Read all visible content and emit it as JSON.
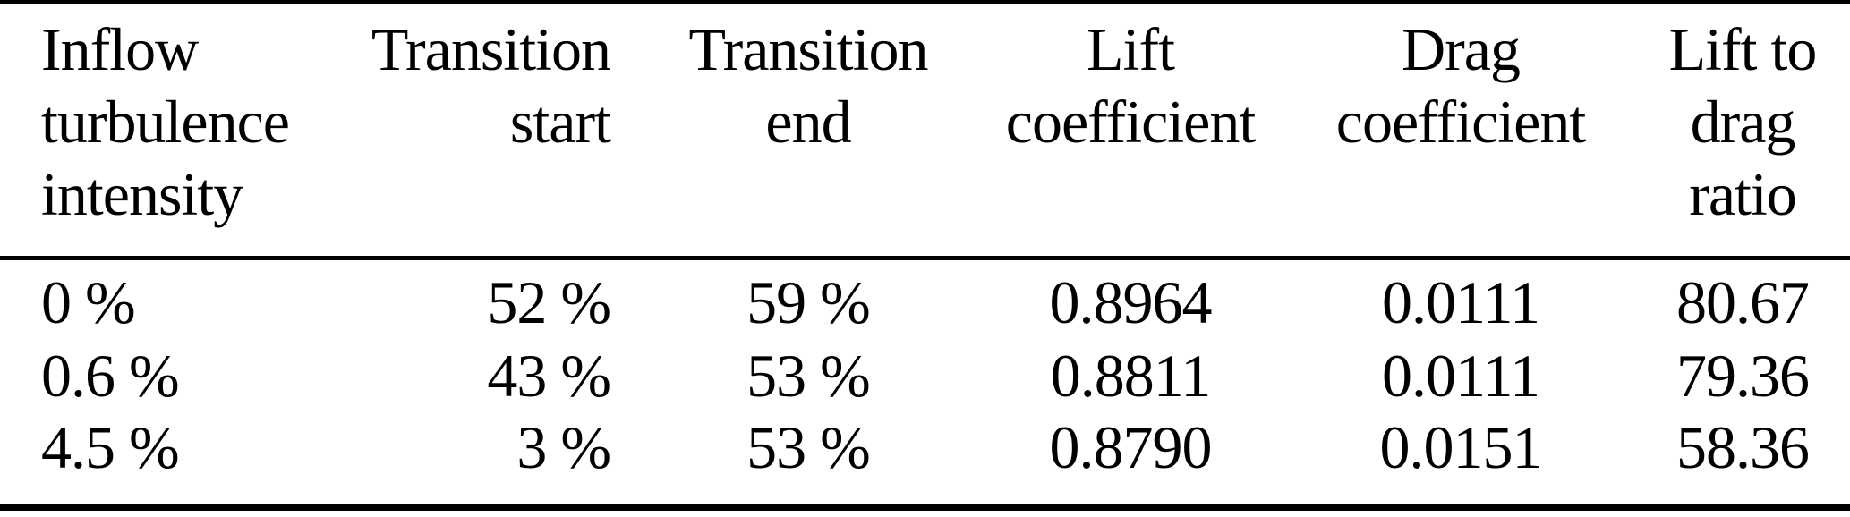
{
  "table": {
    "headers": [
      {
        "id": "inflow-turbulence-intensity",
        "lines": [
          "Inflow",
          "turbulence",
          "intensity"
        ]
      },
      {
        "id": "transition-start",
        "lines": [
          "Transition",
          "start"
        ]
      },
      {
        "id": "transition-end",
        "lines": [
          "Transition",
          "end"
        ]
      },
      {
        "id": "lift-coefficient",
        "lines": [
          "Lift",
          "coefficient"
        ]
      },
      {
        "id": "drag-coefficient",
        "lines": [
          "Drag",
          "coefficient"
        ]
      },
      {
        "id": "lift-to-drag-ratio",
        "lines": [
          "Lift to",
          "drag",
          "ratio"
        ]
      }
    ],
    "rows": [
      [
        "0 %",
        "52 %",
        "59 %",
        "0.8964",
        "0.0111",
        "80.67"
      ],
      [
        "0.6 %",
        "43 %",
        "53 %",
        "0.8811",
        "0.0111",
        "79.36"
      ],
      [
        "4.5 %",
        "3 %",
        "53 %",
        "0.8790",
        "0.0151",
        "58.36"
      ]
    ],
    "colors": {
      "text": "#000000",
      "background": "#ffffff",
      "rule": "#000000"
    }
  }
}
